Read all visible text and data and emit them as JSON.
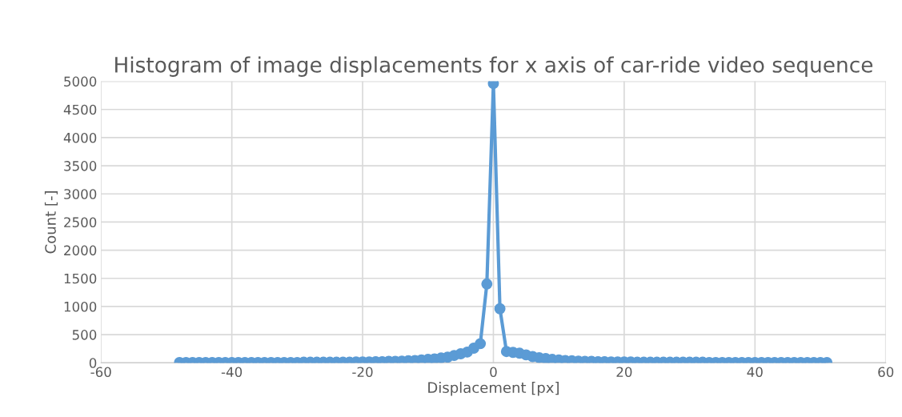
{
  "chart_data": {
    "type": "line",
    "title": "Histogram of image displacements for x axis of car-ride video sequence",
    "xlabel": "Displacement [px]",
    "ylabel": "Count [-]",
    "x": [
      -48,
      -47,
      -46,
      -45,
      -44,
      -43,
      -42,
      -41,
      -40,
      -39,
      -38,
      -37,
      -36,
      -35,
      -34,
      -33,
      -32,
      -31,
      -30,
      -29,
      -28,
      -27,
      -26,
      -25,
      -24,
      -23,
      -22,
      -21,
      -20,
      -19,
      -18,
      -17,
      -16,
      -15,
      -14,
      -13,
      -12,
      -11,
      -10,
      -9,
      -8,
      -7,
      -6,
      -5,
      -4,
      -3,
      -2,
      -1,
      0,
      1,
      2,
      3,
      4,
      5,
      6,
      7,
      8,
      9,
      10,
      11,
      12,
      13,
      14,
      15,
      16,
      17,
      18,
      19,
      20,
      21,
      22,
      23,
      24,
      25,
      26,
      27,
      28,
      29,
      30,
      31,
      32,
      33,
      34,
      35,
      36,
      37,
      38,
      39,
      40,
      41,
      42,
      43,
      44,
      45,
      46,
      47,
      48,
      49,
      50,
      51
    ],
    "series": [
      {
        "color": "#5b9bd5",
        "values": [
          5,
          5,
          5,
          5,
          5,
          5,
          5,
          5,
          5,
          5,
          5,
          5,
          5,
          5,
          5,
          5,
          5,
          5,
          5,
          10,
          10,
          10,
          10,
          10,
          10,
          10,
          10,
          15,
          15,
          15,
          20,
          20,
          25,
          25,
          30,
          35,
          40,
          50,
          60,
          70,
          85,
          100,
          130,
          160,
          190,
          260,
          340,
          1400,
          4960,
          960,
          200,
          185,
          170,
          140,
          110,
          90,
          75,
          60,
          50,
          40,
          35,
          30,
          25,
          25,
          20,
          20,
          15,
          15,
          15,
          15,
          10,
          10,
          10,
          10,
          10,
          10,
          10,
          10,
          10,
          10,
          10,
          5,
          5,
          5,
          5,
          5,
          5,
          5,
          5,
          5,
          5,
          5,
          5,
          5,
          5,
          5,
          5,
          5,
          5,
          5
        ]
      }
    ],
    "xlim": [
      -60,
      60
    ],
    "xticks": [
      -60,
      -40,
      -20,
      0,
      20,
      40,
      60
    ],
    "ylim": [
      0,
      5000
    ],
    "yticks": [
      0,
      500,
      1000,
      1500,
      2000,
      2500,
      3000,
      3500,
      4000,
      4500,
      5000
    ],
    "grid": true,
    "marker": "circle",
    "line_style": "solid",
    "legend": false
  }
}
